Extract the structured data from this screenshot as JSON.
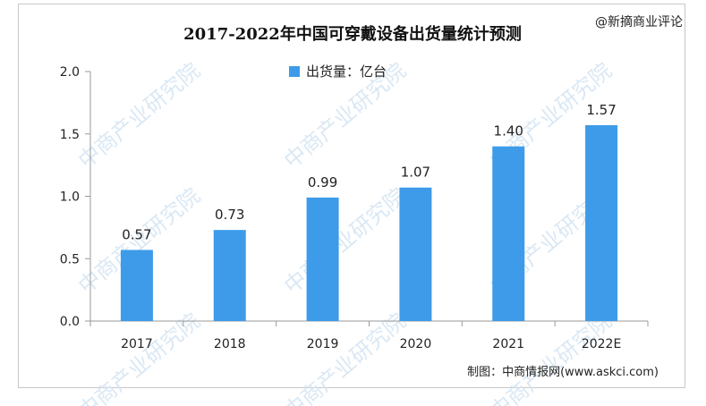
{
  "watermark": {
    "corner_label": "@新摘商业评论",
    "background_text": "中商产业研究院"
  },
  "source": "制图：中商情报网(www.askci.com)",
  "colors": {
    "bar": "#3d9be9",
    "axis": "#9a9a9a",
    "text": "#222222"
  },
  "chart_data": {
    "type": "bar",
    "title": "2017-2022年中国可穿戴设备出货量统计预测",
    "categories": [
      "2017",
      "2018",
      "2019",
      "2020",
      "2021",
      "2022E"
    ],
    "series": [
      {
        "name": "出货量：亿台",
        "values": [
          0.57,
          0.73,
          0.99,
          1.07,
          1.4,
          1.57
        ],
        "labels": [
          "0.57",
          "0.73",
          "0.99",
          "1.07",
          "1.40",
          "1.57"
        ]
      }
    ],
    "ylim": [
      0,
      2.0
    ],
    "yticks": [
      "0.0",
      "0.5",
      "1.0",
      "1.5",
      "2.0"
    ],
    "legend_position": "top-center",
    "grid": false
  }
}
